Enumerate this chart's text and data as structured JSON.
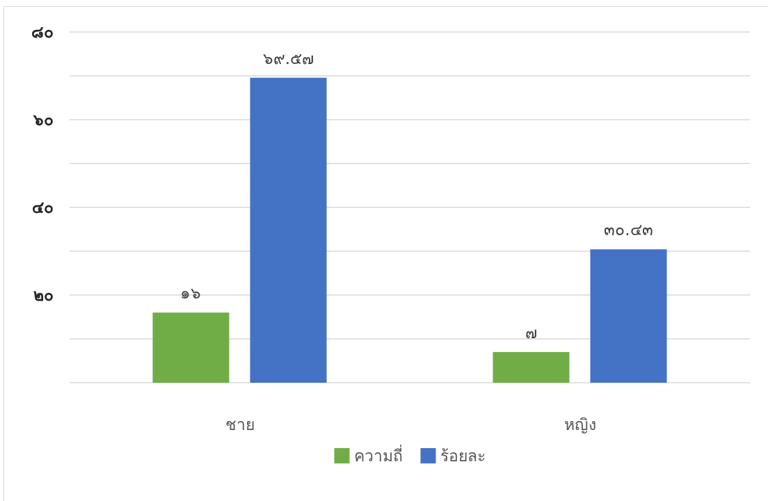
{
  "chart_data": {
    "type": "bar",
    "categories": [
      "ชาย",
      "หญิง"
    ],
    "series": [
      {
        "name": "ความถี่",
        "color": "#70ad47",
        "values": [
          16,
          7
        ],
        "value_labels": [
          "๑๖",
          "๗"
        ]
      },
      {
        "name": "ร้อยละ",
        "color": "#4472c4",
        "values": [
          69.57,
          30.43
        ],
        "value_labels": [
          "๖๙.๕๗",
          "๓๐.๔๓"
        ]
      }
    ],
    "ylim": [
      0,
      80
    ],
    "yticks": [
      {
        "value": 0,
        "label": null
      },
      {
        "value": 10,
        "label": null
      },
      {
        "value": 20,
        "label": "๒๐"
      },
      {
        "value": 30,
        "label": null
      },
      {
        "value": 40,
        "label": "๔๐"
      },
      {
        "value": 50,
        "label": null
      },
      {
        "value": 60,
        "label": "๖๐"
      },
      {
        "value": 70,
        "label": null
      },
      {
        "value": 80,
        "label": "๘๐"
      }
    ],
    "grid": "y",
    "legend": "bottom"
  }
}
